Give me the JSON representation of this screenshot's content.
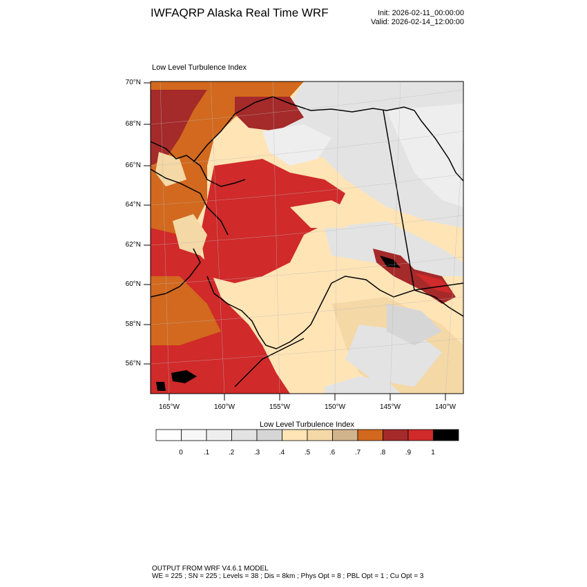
{
  "header": {
    "title": "IWFAQRP Alaska Real Time WRF",
    "init": "Init: 2026-02-11_00:00:00",
    "valid": "Valid: 2026-02-14_12:00:00"
  },
  "plot": {
    "title": "Low Level Turbulence Index",
    "lat_labels": [
      "70°N",
      "68°N",
      "66°N",
      "64°N",
      "62°N",
      "60°N",
      "58°N",
      "56°N"
    ],
    "lon_labels": [
      "165°W",
      "160°W",
      "155°W",
      "150°W",
      "145°W",
      "140°W"
    ]
  },
  "colorbar": {
    "title": "Low Level Turbulence Index",
    "labels": [
      "0",
      ".1",
      ".2",
      ".3",
      ".4",
      ".5",
      ".6",
      ".7",
      ".8",
      ".9",
      "1"
    ],
    "colors": [
      "#ffffff",
      "#f7f7f7",
      "#eeeeee",
      "#e3e3e3",
      "#d6d6d6",
      "#ffe4b6",
      "#f4d8a6",
      "#d2b48c",
      "#d2691e",
      "#a52a2a",
      "#d02a2a",
      "#000000"
    ]
  },
  "footer": {
    "line1": "OUTPUT FROM WRF V4.6.1 MODEL",
    "line2": "WE = 225 ; SN = 225 ; Levels = 38 ; Dis = 8km ; Phys Opt = 8 ; PBL Opt = 1 ; Cu Opt = 3"
  }
}
